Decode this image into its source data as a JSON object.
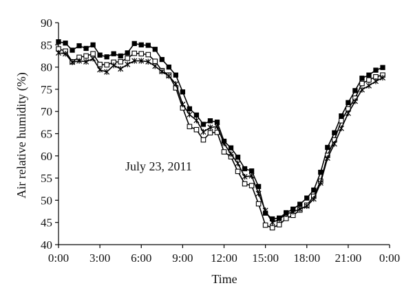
{
  "chart_data": {
    "type": "line",
    "title": "",
    "annotation": "July 23, 2011",
    "xlabel": "Time",
    "ylabel": "Air relative humidity (%)",
    "ylim": [
      40,
      90
    ],
    "y_ticks": [
      "40",
      "45",
      "50",
      "55",
      "60",
      "65",
      "70",
      "75",
      "80",
      "85",
      "90"
    ],
    "xlim": [
      0,
      24
    ],
    "x_ticks": [
      "0:00",
      "3:00",
      "6:00",
      "9:00",
      "12:00",
      "15:00",
      "18:00",
      "21:00",
      "0:00"
    ],
    "grid": false,
    "x": [
      0,
      0.5,
      1,
      1.5,
      2,
      2.5,
      3,
      3.5,
      4,
      4.5,
      5,
      5.5,
      6,
      6.5,
      7,
      7.5,
      8,
      8.5,
      9,
      9.5,
      10,
      10.5,
      11,
      11.5,
      12,
      12.5,
      13,
      13.5,
      14,
      14.5,
      15,
      15.5,
      16,
      16.5,
      17,
      17.5,
      18,
      18.5,
      19,
      19.5,
      20,
      20.5,
      21,
      21.5,
      22,
      22.5,
      23,
      23.5
    ],
    "series": [
      {
        "marker": "filled-square",
        "values": [
          85.7,
          85.4,
          83.8,
          84.8,
          84.2,
          85.0,
          82.7,
          82.3,
          83.0,
          82.5,
          83.2,
          85.3,
          85.0,
          84.9,
          84.0,
          81.7,
          80.0,
          78.2,
          74.4,
          70.6,
          69.2,
          67.1,
          67.9,
          67.6,
          63.3,
          61.8,
          59.7,
          57.1,
          56.6,
          53.1,
          47.1,
          45.8,
          46.0,
          47.2,
          48.0,
          49.1,
          50.5,
          52.3,
          56.3,
          61.9,
          65.2,
          69.0,
          72.0,
          74.7,
          77.5,
          78.2,
          79.3,
          79.9
        ]
      },
      {
        "marker": "open-square",
        "values": [
          84.1,
          83.6,
          81.2,
          82.2,
          82.5,
          83.0,
          80.6,
          80.5,
          81.1,
          81.2,
          82.0,
          83.1,
          83.0,
          82.8,
          81.3,
          79.2,
          78.2,
          75.3,
          70.8,
          66.6,
          65.9,
          63.6,
          65.2,
          65.3,
          60.9,
          59.8,
          56.5,
          53.7,
          53.3,
          49.2,
          44.4,
          43.8,
          44.5,
          45.9,
          46.6,
          47.8,
          48.9,
          50.9,
          54.3,
          60.1,
          63.6,
          67.9,
          70.6,
          73.0,
          76.3,
          77.1,
          77.8,
          78.2
        ]
      },
      {
        "marker": "star",
        "values": [
          83.2,
          83.0,
          81.1,
          81.4,
          81.2,
          81.9,
          79.4,
          78.9,
          80.4,
          79.6,
          80.6,
          81.4,
          81.4,
          81.2,
          80.2,
          79.0,
          78.0,
          76.2,
          71.6,
          69.3,
          68.0,
          65.4,
          66.4,
          66.6,
          62.8,
          60.4,
          58.3,
          55.3,
          55.5,
          51.5,
          47.7,
          45.0,
          45.7,
          46.9,
          47.4,
          48.0,
          48.7,
          50.3,
          53.9,
          59.5,
          62.7,
          66.2,
          69.6,
          72.3,
          74.9,
          75.8,
          76.8,
          77.6
        ]
      }
    ]
  }
}
